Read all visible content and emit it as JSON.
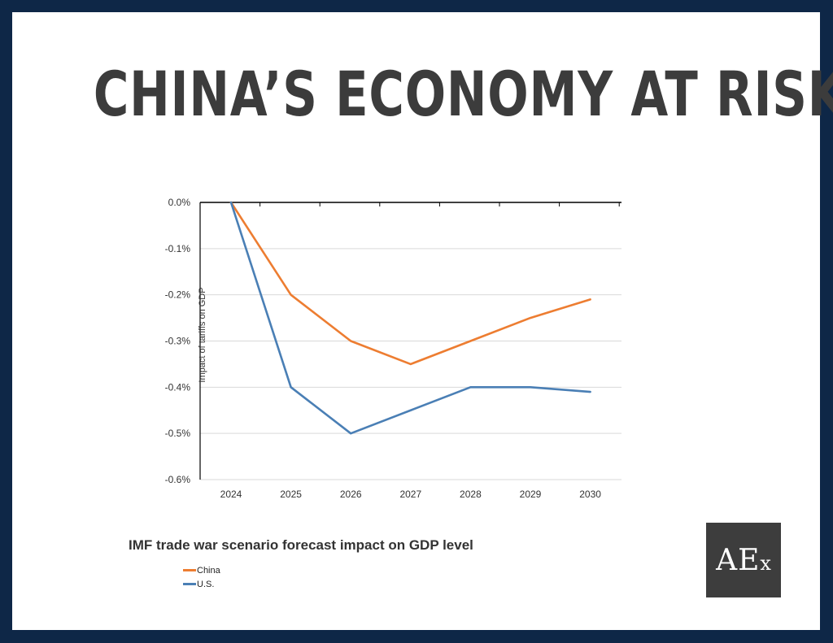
{
  "headline": "CHINA’S ECONOMY AT RISK.",
  "logo": {
    "text_big": "AE",
    "text_small": "x"
  },
  "colors": {
    "background": "#0e2747",
    "card": "#ffffff",
    "china": "#ed7d31",
    "us": "#4a7fb5",
    "headline": "#3c3c3c",
    "logo_bg": "#3d3d3d"
  },
  "chart_data": {
    "type": "line",
    "title": "IMF trade war scenario forecast impact on GDP level",
    "xlabel": "",
    "ylabel": "Impact of tariffs on GDP",
    "categories": [
      "2024",
      "2025",
      "2026",
      "2027",
      "2028",
      "2029",
      "2030"
    ],
    "y_ticks": [
      "0.0%",
      "-0.1%",
      "-0.2%",
      "-0.3%",
      "-0.4%",
      "-0.5%",
      "-0.6%"
    ],
    "ylim": [
      -0.6,
      0
    ],
    "grid": true,
    "legend": "bottom-left",
    "series": [
      {
        "name": "China",
        "color": "#ed7d31",
        "values": [
          0,
          -0.2,
          -0.3,
          -0.35,
          -0.3,
          -0.25,
          -0.21
        ]
      },
      {
        "name": "U.S.",
        "color": "#4a7fb5",
        "values": [
          0,
          -0.4,
          -0.5,
          -0.45,
          -0.4,
          -0.4,
          -0.41
        ]
      }
    ]
  }
}
